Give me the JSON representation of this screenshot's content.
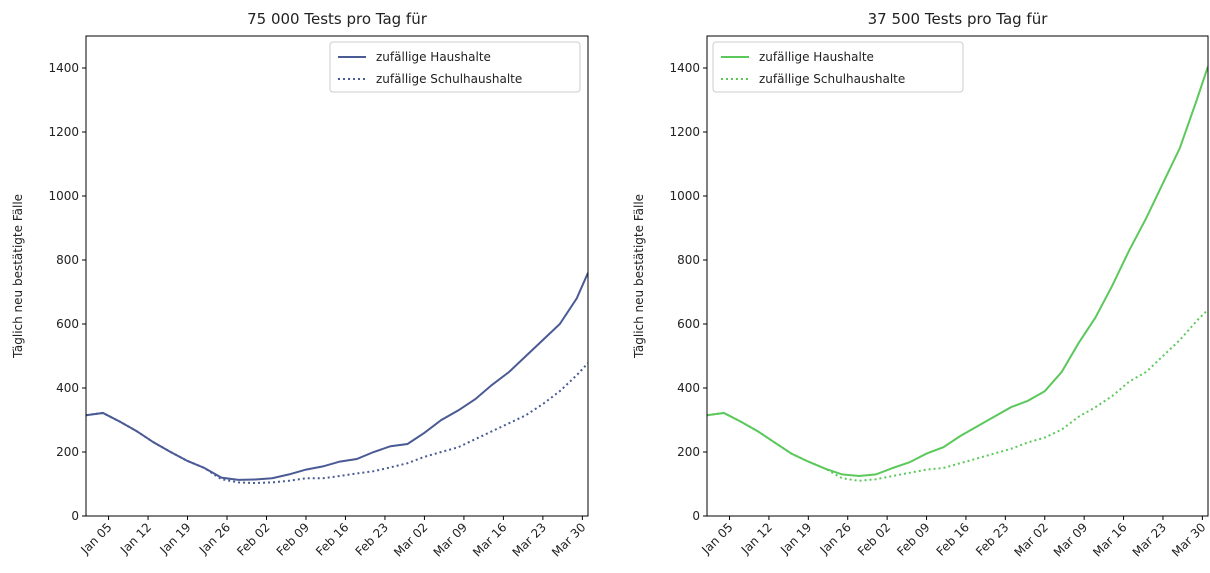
{
  "chart_data": [
    {
      "type": "line",
      "title": "75 000 Tests pro Tag für",
      "ylabel": "Täglich neu bestätigte Fälle",
      "legend": "upper right",
      "xlim": [
        "01-01",
        "03-31"
      ],
      "ylim": [
        0,
        1500
      ],
      "yticks": [
        0,
        200,
        400,
        600,
        800,
        1000,
        1200,
        1400
      ],
      "xticks": [
        {
          "value": "01-05",
          "label": "Jan 05"
        },
        {
          "value": "01-12",
          "label": "Jan 12"
        },
        {
          "value": "01-19",
          "label": "Jan 19"
        },
        {
          "value": "01-26",
          "label": "Jan 26"
        },
        {
          "value": "02-02",
          "label": "Feb 02"
        },
        {
          "value": "02-09",
          "label": "Feb 09"
        },
        {
          "value": "02-16",
          "label": "Feb 16"
        },
        {
          "value": "02-23",
          "label": "Feb 23"
        },
        {
          "value": "03-02",
          "label": "Mar 02"
        },
        {
          "value": "03-09",
          "label": "Mar 09"
        },
        {
          "value": "03-16",
          "label": "Mar 16"
        },
        {
          "value": "03-23",
          "label": "Mar 23"
        },
        {
          "value": "03-30",
          "label": "Mar 30"
        }
      ],
      "x": [
        "01-01",
        "01-04",
        "01-07",
        "01-10",
        "01-13",
        "01-16",
        "01-19",
        "01-22",
        "01-25",
        "01-28",
        "01-31",
        "02-03",
        "02-06",
        "02-09",
        "02-12",
        "02-15",
        "02-18",
        "02-21",
        "02-24",
        "02-27",
        "03-02",
        "03-05",
        "03-08",
        "03-11",
        "03-14",
        "03-17",
        "03-20",
        "03-23",
        "03-26",
        "03-29",
        "03-31"
      ],
      "series": [
        {
          "name": "zufällige Haushalte",
          "color": "#4a5a94",
          "style": "solid",
          "values": [
            315,
            322,
            295,
            265,
            230,
            200,
            172,
            150,
            120,
            113,
            114,
            118,
            130,
            145,
            155,
            170,
            178,
            200,
            218,
            225,
            260,
            300,
            330,
            365,
            410,
            450,
            500,
            550,
            600,
            680,
            760
          ]
        },
        {
          "name": "zufällige Schulhaushalte",
          "color": "#4a5a94",
          "style": "dotted",
          "values": [
            315,
            322,
            295,
            265,
            230,
            200,
            172,
            150,
            115,
            105,
            103,
            105,
            110,
            118,
            118,
            125,
            133,
            140,
            152,
            165,
            185,
            200,
            215,
            240,
            265,
            290,
            315,
            350,
            390,
            440,
            478
          ]
        }
      ]
    },
    {
      "type": "line",
      "title": "37 500 Tests pro Tag für",
      "ylabel": "Täglich neu bestätigte Fälle",
      "legend": "upper left",
      "xlim": [
        "01-01",
        "03-31"
      ],
      "ylim": [
        0,
        1500
      ],
      "yticks": [
        0,
        200,
        400,
        600,
        800,
        1000,
        1200,
        1400
      ],
      "xticks": [
        {
          "value": "01-05",
          "label": "Jan 05"
        },
        {
          "value": "01-12",
          "label": "Jan 12"
        },
        {
          "value": "01-19",
          "label": "Jan 19"
        },
        {
          "value": "01-26",
          "label": "Jan 26"
        },
        {
          "value": "02-02",
          "label": "Feb 02"
        },
        {
          "value": "02-09",
          "label": "Feb 09"
        },
        {
          "value": "02-16",
          "label": "Feb 16"
        },
        {
          "value": "02-23",
          "label": "Feb 23"
        },
        {
          "value": "03-02",
          "label": "Mar 02"
        },
        {
          "value": "03-09",
          "label": "Mar 09"
        },
        {
          "value": "03-16",
          "label": "Mar 16"
        },
        {
          "value": "03-23",
          "label": "Mar 23"
        },
        {
          "value": "03-30",
          "label": "Mar 30"
        }
      ],
      "x": [
        "01-01",
        "01-04",
        "01-07",
        "01-10",
        "01-13",
        "01-16",
        "01-19",
        "01-22",
        "01-25",
        "01-28",
        "01-31",
        "02-03",
        "02-06",
        "02-09",
        "02-12",
        "02-15",
        "02-18",
        "02-21",
        "02-24",
        "02-27",
        "03-02",
        "03-05",
        "03-08",
        "03-11",
        "03-14",
        "03-17",
        "03-20",
        "03-23",
        "03-26",
        "03-29",
        "03-31"
      ],
      "series": [
        {
          "name": "zufällige Haushalte",
          "color": "#5cc85c",
          "style": "solid",
          "values": [
            315,
            322,
            295,
            265,
            230,
            195,
            170,
            148,
            130,
            125,
            130,
            150,
            168,
            195,
            215,
            250,
            280,
            310,
            340,
            360,
            390,
            450,
            540,
            620,
            720,
            830,
            930,
            1040,
            1150,
            1300,
            1405
          ]
        },
        {
          "name": "zufällige Schulhaushalte",
          "color": "#5cc85c",
          "style": "dotted",
          "values": [
            315,
            322,
            295,
            265,
            230,
            195,
            170,
            148,
            118,
            110,
            115,
            125,
            135,
            145,
            150,
            165,
            180,
            195,
            210,
            230,
            245,
            270,
            310,
            340,
            375,
            420,
            450,
            500,
            550,
            610,
            645
          ]
        }
      ]
    }
  ]
}
